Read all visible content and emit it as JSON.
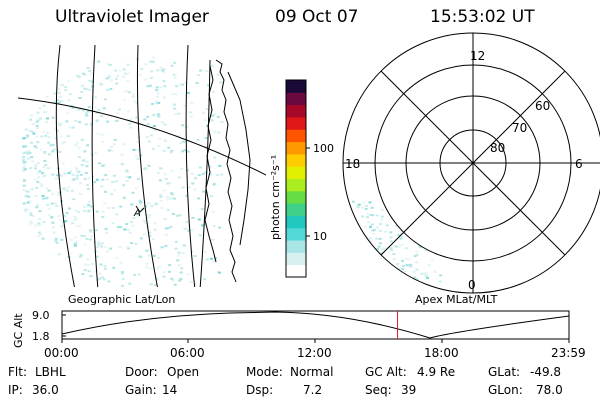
{
  "header": {
    "instrument": "Ultraviolet Imager",
    "date": "09 Oct 07",
    "time": "15:53:02 UT"
  },
  "colorbar": {
    "unit_label": "photon cm⁻²s⁻¹",
    "ticks": [
      "100",
      "10"
    ],
    "colors": [
      "#ffffff",
      "#d8f0f0",
      "#a8e6e6",
      "#55d8d8",
      "#20c8c0",
      "#40d088",
      "#66dd44",
      "#aaee22",
      "#e0f000",
      "#ffcc00",
      "#ff9900",
      "#ff5500",
      "#e01818",
      "#a80828",
      "#6a0840",
      "#1a0838"
    ]
  },
  "polar_plot": {
    "mlt_labels": {
      "top": "12",
      "bottom": "0",
      "left": "18",
      "right": "6"
    },
    "lat_labels": [
      "60",
      "70",
      "80"
    ]
  },
  "geo_map": {
    "marker": "A"
  },
  "orbit_panel": {
    "title_left": "Geographic Lat/Lon",
    "title_right": "Apex MLat/MLT",
    "yaxis_label": "GC Alt",
    "y_ticks": [
      "9.0",
      "1.8"
    ],
    "x_ticks": [
      "00:00",
      "06:00",
      "12:00",
      "18:00",
      "23:59"
    ],
    "current_time_fraction": 0.6618
  },
  "status": {
    "row1": [
      {
        "label": "Flt:",
        "value": "LBHL"
      },
      {
        "label": "Door:",
        "value": "Open"
      },
      {
        "label": "Mode:",
        "value": "Normal"
      },
      {
        "label": "GC Alt:",
        "value": "4.9 Re"
      },
      {
        "label": "GLat:",
        "value": "-49.8"
      }
    ],
    "row2": [
      {
        "label": "IP:",
        "value": "36.0"
      },
      {
        "label": "Gain:",
        "value": "14"
      },
      {
        "label": "Dsp:",
        "value": "7.2"
      },
      {
        "label": "Seq:",
        "value": "39"
      },
      {
        "label": "GLon:",
        "value": "78.0"
      }
    ]
  }
}
